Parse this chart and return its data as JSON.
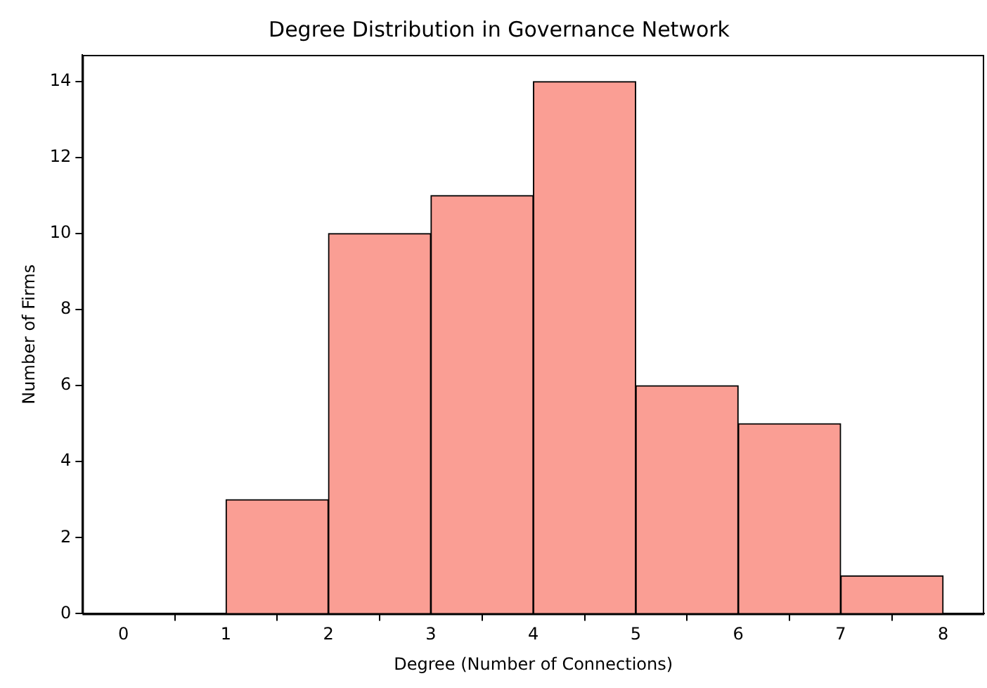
{
  "chart_data": {
    "type": "histogram",
    "title": "Degree Distribution in Governance Network",
    "xlabel": "Degree (Number of Connections)",
    "ylabel": "Number of Firms",
    "bins": [
      0,
      1,
      2,
      3,
      4,
      5,
      6,
      7,
      8
    ],
    "values": [
      0,
      3,
      10,
      11,
      14,
      6,
      5,
      1
    ],
    "color": "#fa9e94",
    "xlim": [
      -0.4,
      8.4
    ],
    "xticks": [
      0,
      1,
      2,
      3,
      4,
      5,
      6,
      7,
      8
    ],
    "ylim": [
      0,
      14.7
    ],
    "yticks": [
      0,
      2,
      4,
      6,
      8,
      10,
      12,
      14
    ],
    "legend": false
  }
}
